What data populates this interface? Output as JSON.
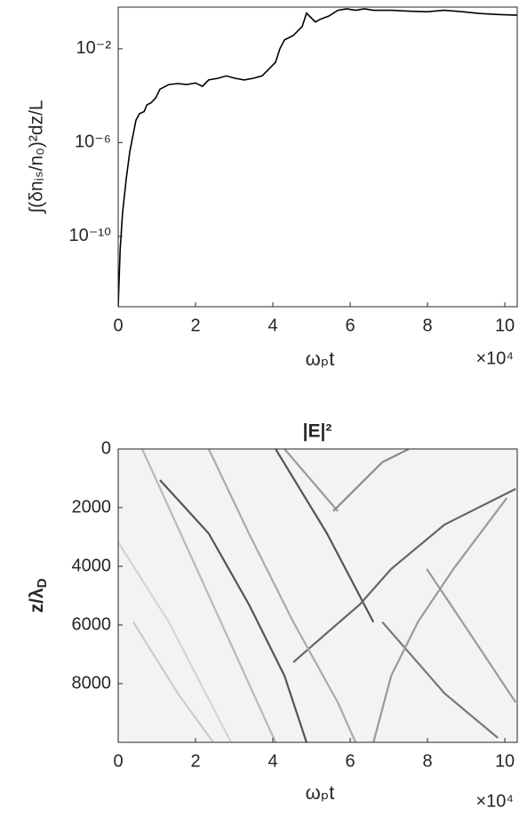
{
  "chart_data": [
    {
      "type": "line",
      "ylabel": "∫(δnᵢₛ/n₀)²dz/L",
      "xlabel": "ωₚt",
      "x_multiplier": "×10⁴",
      "xlim": [
        0,
        10.32
      ],
      "xticks": [
        0,
        2,
        4,
        6,
        8,
        10
      ],
      "yscale": "log",
      "ylim": [
        1e-13,
        0.6
      ],
      "yticks": [
        {
          "value": 1e-10,
          "label": "10⁻¹⁰"
        },
        {
          "value": 1e-06,
          "label": "10⁻⁶"
        },
        {
          "value": 0.01,
          "label": "10⁻²"
        }
      ],
      "grid": false,
      "series": [
        {
          "color": "#000000",
          "x": [
            0,
            0.05,
            0.11,
            0.21,
            0.3,
            0.39,
            0.46,
            0.55,
            0.67,
            0.74,
            0.85,
            0.97,
            1.08,
            1.31,
            1.54,
            1.77,
            2.0,
            2.18,
            2.34,
            2.57,
            2.8,
            3.03,
            3.26,
            3.49,
            3.72,
            3.84,
            4.07,
            4.18,
            4.3,
            4.53,
            4.76,
            4.87,
            4.99,
            5.1,
            5.22,
            5.45,
            5.68,
            5.91,
            6.14,
            6.37,
            6.6,
            7.06,
            7.52,
            7.98,
            8.44,
            8.9,
            9.36,
            9.82,
            10.32
          ],
          "values": [
            1e-13,
            2.7e-11,
            9e-10,
            3e-08,
            4.2e-07,
            2.4e-06,
            9e-06,
            1.7e-05,
            2.1e-05,
            4e-05,
            5e-05,
            8e-05,
            0.00019,
            0.0003,
            0.00033,
            0.0003,
            0.00035,
            0.00025,
            0.00047,
            0.00055,
            0.0007,
            0.00055,
            0.00047,
            0.00055,
            0.0007,
            0.0011,
            0.0027,
            0.01,
            0.024,
            0.037,
            0.09,
            0.33,
            0.21,
            0.14,
            0.18,
            0.25,
            0.44,
            0.51,
            0.44,
            0.51,
            0.44,
            0.44,
            0.4,
            0.38,
            0.44,
            0.38,
            0.32,
            0.29,
            0.27
          ]
        }
      ]
    },
    {
      "type": "image",
      "title": "|E|²",
      "ylabel": {
        "base": "z/λ",
        "subscript": "D"
      },
      "xlabel": "ωₚt",
      "x_multiplier": "×10⁴",
      "xlim": [
        0,
        10.32
      ],
      "xticks": [
        0,
        2,
        4,
        6,
        8,
        10
      ],
      "ylim": [
        10000,
        0
      ],
      "yticks": [
        0,
        2000,
        4000,
        6000,
        8000
      ],
      "background": "#f3f3f3",
      "ridges": [
        {
          "color": "#b8b8b8",
          "x": [
            0.62,
            4.07
          ],
          "z": [
            0,
            10000
          ]
        },
        {
          "color": "#555555",
          "x": [
            1.08,
            2.34,
            3.38,
            4.3,
            4.87
          ],
          "z": [
            1060,
            2880,
            5300,
            7730,
            10000
          ]
        },
        {
          "color": "#555555",
          "x": [
            4.07,
            5.4,
            6.6
          ],
          "z": [
            0,
            2880,
            5900
          ]
        },
        {
          "color": "#666666",
          "x": [
            4.53,
            5.45,
            6.25,
            7.06,
            8.44,
            10.28
          ],
          "z": [
            7270,
            6210,
            5300,
            4090,
            2580,
            1360
          ]
        },
        {
          "color": "#9a9a9a",
          "x": [
            4.3,
            5.68
          ],
          "z": [
            0,
            2120
          ]
        },
        {
          "color": "#8a8a8a",
          "x": [
            5.56,
            6.83,
            7.52
          ],
          "z": [
            2120,
            450,
            0
          ]
        },
        {
          "color": "#777777",
          "x": [
            6.83,
            8.44,
            9.82
          ],
          "z": [
            5900,
            8330,
            9850
          ]
        },
        {
          "color": "#999999",
          "x": [
            7.98,
            8.9,
            10.28
          ],
          "z": [
            4090,
            5900,
            8640
          ]
        },
        {
          "color": "#cccccc",
          "x": [
            0.39,
            1.54,
            2.46
          ],
          "z": [
            5900,
            8330,
            10000
          ]
        },
        {
          "color": "#d4d4d4",
          "x": [
            0,
            1.31,
            2.92
          ],
          "z": [
            3180,
            5900,
            10000
          ]
        },
        {
          "color": "#aaaaaa",
          "x": [
            2.34,
            3.38,
            4.53,
            5.68,
            6.14
          ],
          "z": [
            0,
            2880,
            5900,
            8640,
            10000
          ]
        },
        {
          "color": "#999999",
          "x": [
            10.05,
            8.67,
            7.75,
            7.06,
            6.6
          ],
          "z": [
            1670,
            4090,
            5900,
            7730,
            10000
          ]
        }
      ]
    }
  ]
}
